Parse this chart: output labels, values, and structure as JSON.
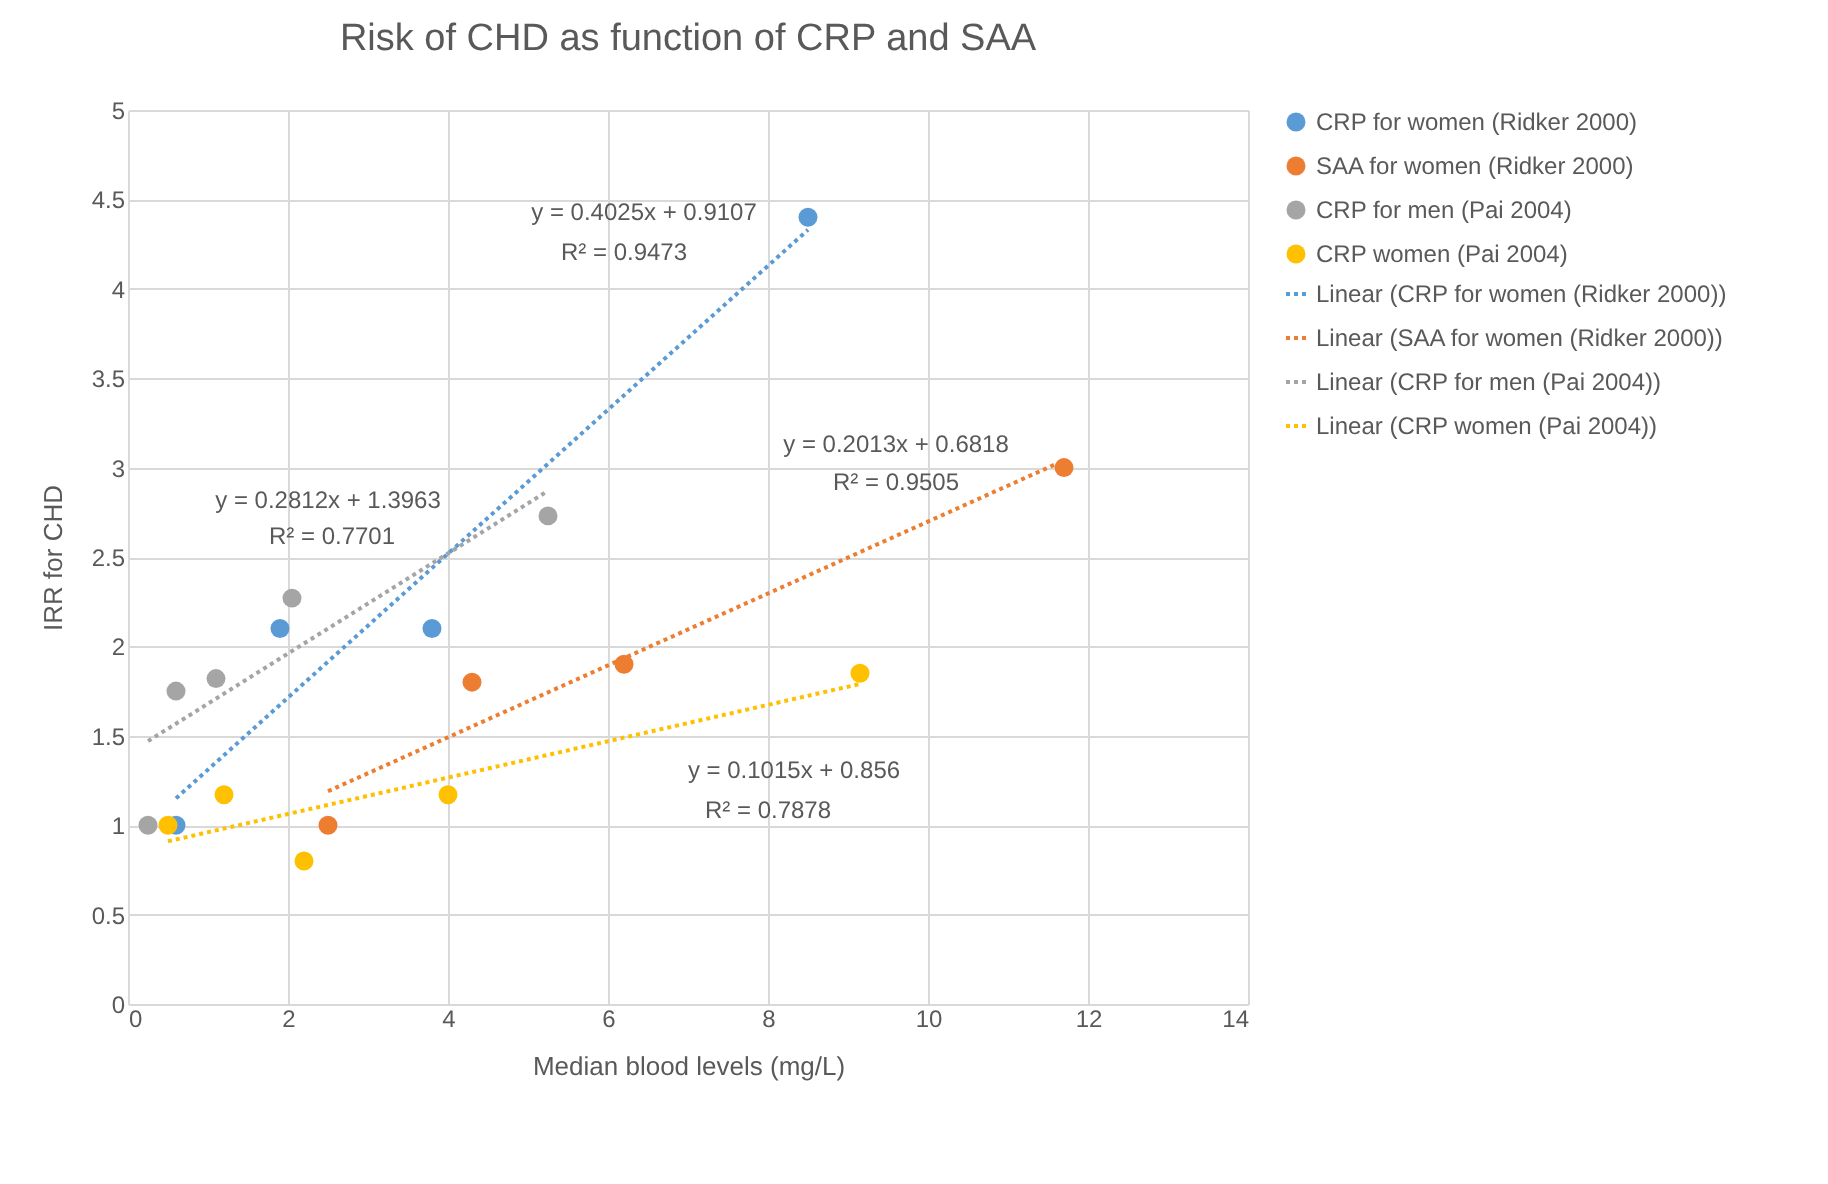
{
  "chart_data": {
    "type": "scatter",
    "title": "Risk of CHD as function of CRP and SAA",
    "xlabel": "Median blood levels (mg/L)",
    "ylabel": "IRR for CHD",
    "xlim": [
      0,
      14
    ],
    "xticks": [
      0,
      2,
      4,
      6,
      8,
      10,
      12,
      14
    ],
    "ylim": [
      0,
      5
    ],
    "yticks": [
      0,
      0.5,
      1,
      1.5,
      2,
      2.5,
      3,
      3.5,
      4,
      4.5,
      5
    ],
    "grid": true,
    "legend": "right",
    "series": [
      {
        "name": "CRP for women (Ridker 2000)",
        "marker": "circle",
        "color": "#5b9bd5",
        "x": [
          0.6,
          1.9,
          3.8,
          8.5
        ],
        "values": [
          1.0,
          2.1,
          2.1,
          4.4
        ]
      },
      {
        "name": "SAA for women (Ridker 2000)",
        "marker": "circle",
        "color": "#ed7d31",
        "x": [
          2.5,
          4.3,
          6.2,
          11.7
        ],
        "values": [
          1.0,
          1.8,
          1.9,
          3.0
        ]
      },
      {
        "name": "CRP for men (Pai 2004)",
        "marker": "circle",
        "color": "#a5a5a5",
        "x": [
          0.25,
          0.6,
          1.1,
          2.05,
          5.25
        ],
        "values": [
          1.0,
          1.75,
          1.82,
          2.27,
          2.73
        ]
      },
      {
        "name": "CRP women (Pai 2004)",
        "marker": "circle",
        "color": "#ffc000",
        "x": [
          0.5,
          1.2,
          2.2,
          4.0,
          9.15
        ],
        "values": [
          1.0,
          1.17,
          0.8,
          1.17,
          1.85
        ]
      },
      {
        "name": "Linear (CRP for women (Ridker 2000))",
        "type": "line",
        "marker": "none",
        "line_style": "dotted",
        "color": "#5b9bd5",
        "x": [
          0.6,
          8.5
        ],
        "values": [
          1.15,
          4.33
        ]
      },
      {
        "name": "Linear (SAA for women (Ridker 2000))",
        "type": "line",
        "marker": "none",
        "line_style": "dotted",
        "color": "#ed7d31",
        "x": [
          2.5,
          11.7
        ],
        "values": [
          1.19,
          3.04
        ]
      },
      {
        "name": "Linear (CRP for men (Pai 2004))",
        "type": "line",
        "marker": "none",
        "line_style": "dotted",
        "color": "#a5a5a5",
        "x": [
          0.25,
          5.25
        ],
        "values": [
          1.47,
          2.87
        ]
      },
      {
        "name": "Linear (CRP women (Pai 2004))",
        "type": "line",
        "marker": "none",
        "line_style": "dotted",
        "color": "#ffc000",
        "x": [
          0.5,
          9.15
        ],
        "values": [
          0.91,
          1.79
        ]
      }
    ],
    "annotations": [
      "y = 0.4025x + 0.9107",
      "R² = 0.9473",
      "y = 0.2812x + 1.3963",
      "R² = 0.7701",
      "y = 0.2013x + 0.6818",
      "R² = 0.9505",
      "y = 0.1015x + 0.856",
      "R² = 0.7878"
    ]
  }
}
